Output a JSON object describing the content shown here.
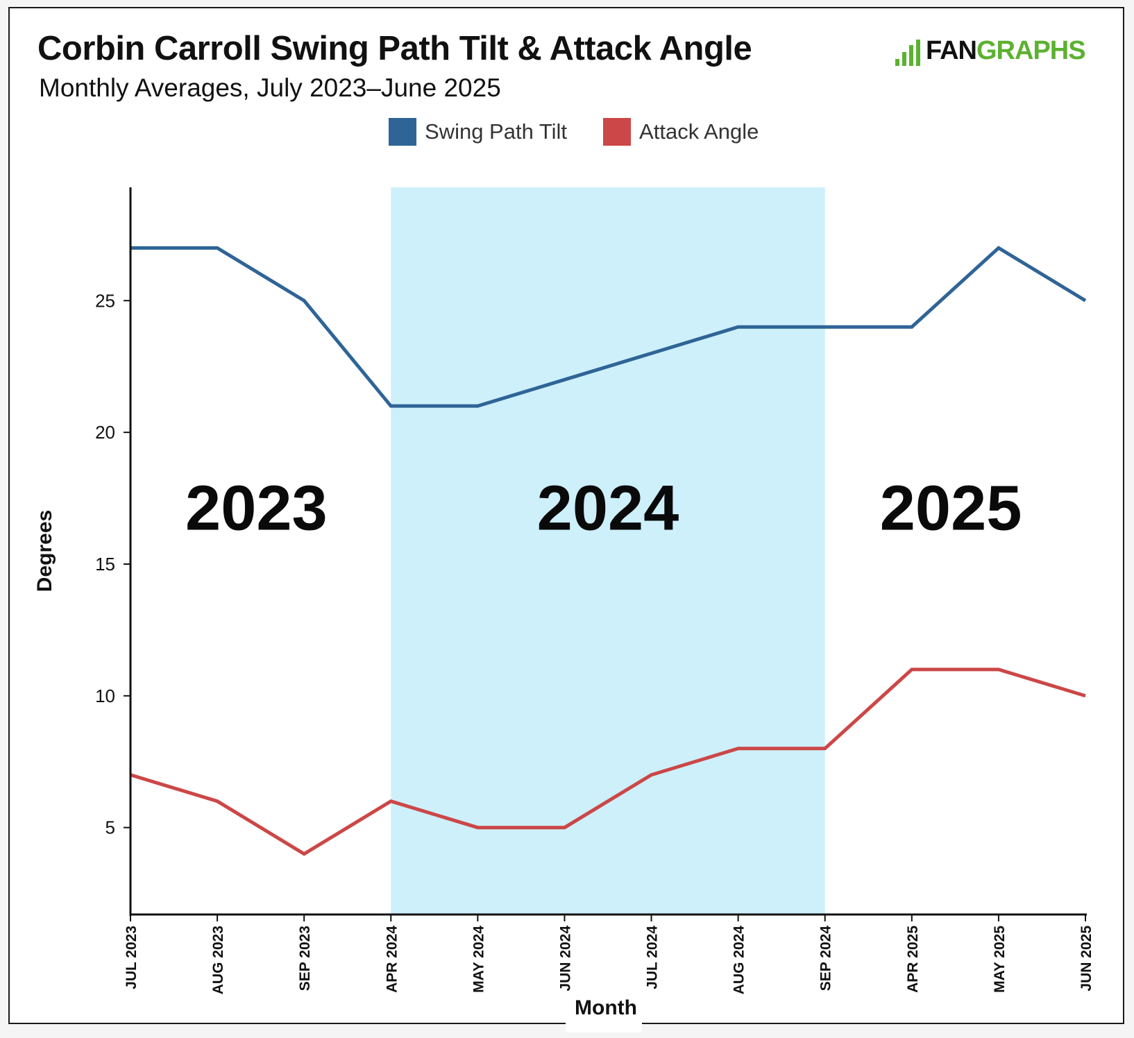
{
  "header": {
    "title": "Corbin Carroll Swing Path Tilt & Attack Angle",
    "subtitle": "Monthly Averages, July 2023–June 2025"
  },
  "logo": {
    "part1": "FAN",
    "part2": "GRAPHS",
    "color": "#5cb130"
  },
  "legend": [
    {
      "label": "Swing Path Tilt",
      "color": "#2f6496"
    },
    {
      "label": "Attack Angle",
      "color": "#cc4747"
    }
  ],
  "chart_data": {
    "type": "line",
    "title": "Corbin Carroll Swing Path Tilt & Attack Angle",
    "subtitle": "Monthly Averages, July 2023–June 2025",
    "xlabel": "Month",
    "ylabel": "Degrees",
    "categories": [
      "JUL 2023",
      "AUG 2023",
      "SEP 2023",
      "APR 2024",
      "MAY 2024",
      "JUN 2024",
      "JUL 2024",
      "AUG 2024",
      "SEP 2024",
      "APR 2025",
      "MAY 2025",
      "JUN 2025"
    ],
    "series": [
      {
        "name": "Swing Path Tilt",
        "color": "#2f6496",
        "values": [
          27,
          27,
          25,
          21,
          21,
          22,
          23,
          24,
          24,
          24,
          27,
          25
        ]
      },
      {
        "name": "Attack Angle",
        "color": "#cc4747",
        "values": [
          7,
          6,
          4,
          6,
          5,
          5,
          7,
          8,
          8,
          11,
          11,
          10
        ]
      }
    ],
    "ylim": [
      1.7,
      29.3
    ],
    "yticks": [
      5,
      10,
      15,
      20,
      25
    ],
    "grid": false,
    "legend_position": "top-center",
    "highlight_region": {
      "from": "APR 2024",
      "to": "SEP 2024",
      "color": "#cdf0fb"
    },
    "annotations": [
      {
        "text": "2023",
        "at_category": 1.45,
        "y": 16.3
      },
      {
        "text": "2024",
        "at_category": 5.5,
        "y": 16.3
      },
      {
        "text": "2025",
        "at_category": 9.45,
        "y": 16.3
      }
    ]
  }
}
